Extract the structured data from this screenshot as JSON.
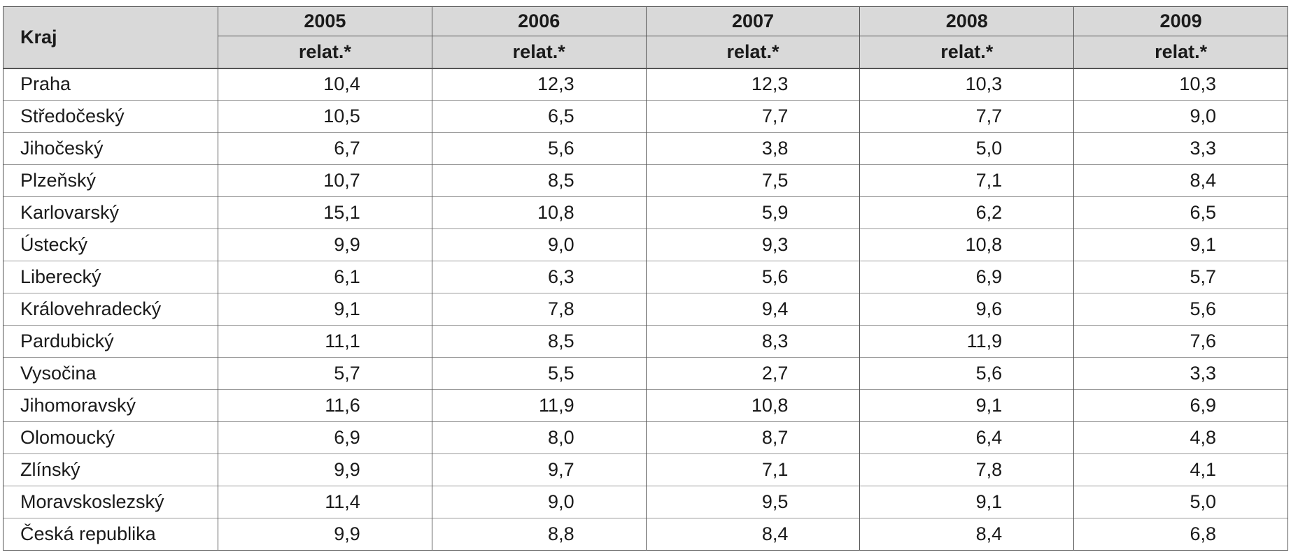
{
  "table": {
    "header_region": "Kraj",
    "years": [
      "2005",
      "2006",
      "2007",
      "2008",
      "2009"
    ],
    "unit_label": "relat.*",
    "rows": [
      {
        "name": "Praha",
        "values": [
          "10,4",
          "12,3",
          "12,3",
          "10,3",
          "10,3"
        ]
      },
      {
        "name": "Středočeský",
        "values": [
          "10,5",
          "6,5",
          "7,7",
          "7,7",
          "9,0"
        ]
      },
      {
        "name": "Jihočeský",
        "values": [
          "6,7",
          "5,6",
          "3,8",
          "5,0",
          "3,3"
        ]
      },
      {
        "name": "Plzeňský",
        "values": [
          "10,7",
          "8,5",
          "7,5",
          "7,1",
          "8,4"
        ]
      },
      {
        "name": "Karlovarský",
        "values": [
          "15,1",
          "10,8",
          "5,9",
          "6,2",
          "6,5"
        ]
      },
      {
        "name": "Ústecký",
        "values": [
          "9,9",
          "9,0",
          "9,3",
          "10,8",
          "9,1"
        ]
      },
      {
        "name": "Liberecký",
        "values": [
          "6,1",
          "6,3",
          "5,6",
          "6,9",
          "5,7"
        ]
      },
      {
        "name": "Královehradecký",
        "values": [
          "9,1",
          "7,8",
          "9,4",
          "9,6",
          "5,6"
        ]
      },
      {
        "name": "Pardubický",
        "values": [
          "11,1",
          "8,5",
          "8,3",
          "11,9",
          "7,6"
        ]
      },
      {
        "name": "Vysočina",
        "values": [
          "5,7",
          "5,5",
          "2,7",
          "5,6",
          "3,3"
        ]
      },
      {
        "name": "Jihomoravský",
        "values": [
          "11,6",
          "11,9",
          "10,8",
          "9,1",
          "6,9"
        ]
      },
      {
        "name": "Olomoucký",
        "values": [
          "6,9",
          "8,0",
          "8,7",
          "6,4",
          "4,8"
        ]
      },
      {
        "name": "Zlínský",
        "values": [
          "9,9",
          "9,7",
          "7,1",
          "7,8",
          "4,1"
        ]
      },
      {
        "name": "Moravskoslezský",
        "values": [
          "11,4",
          "9,0",
          "9,5",
          "9,1",
          "5,0"
        ]
      },
      {
        "name": "Česká republika",
        "values": [
          "9,9",
          "8,8",
          "8,4",
          "8,4",
          "6,8"
        ]
      }
    ]
  }
}
